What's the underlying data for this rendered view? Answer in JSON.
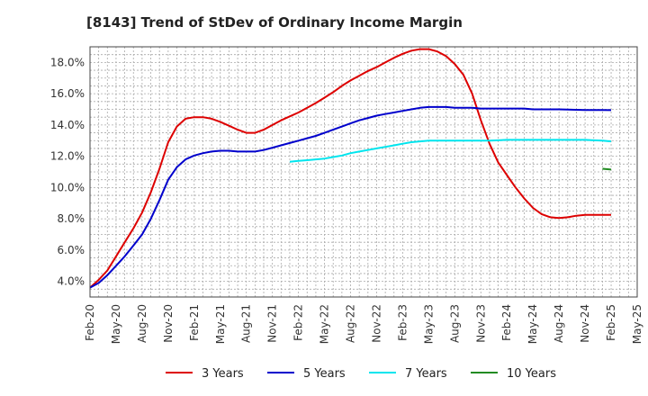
{
  "chart_data": {
    "type": "line",
    "title": "[8143]  Trend of StDev of Ordinary Income Margin",
    "xlabel": "",
    "ylabel": "",
    "x_ticks": [
      "Feb-20",
      "May-20",
      "Aug-20",
      "Nov-20",
      "Feb-21",
      "May-21",
      "Aug-21",
      "Nov-21",
      "Feb-22",
      "May-22",
      "Aug-22",
      "Nov-22",
      "Feb-23",
      "May-23",
      "Aug-23",
      "Nov-23",
      "Feb-24",
      "May-24",
      "Aug-24",
      "Nov-24",
      "Feb-25",
      "May-25"
    ],
    "y_ticks": [
      "4.0%",
      "6.0%",
      "8.0%",
      "10.0%",
      "12.0%",
      "14.0%",
      "16.0%",
      "18.0%"
    ],
    "ylim": [
      3.0,
      19.0
    ],
    "grid": true,
    "legend_position": "bottom",
    "series": [
      {
        "name": "3 Years",
        "color": "#dd0000",
        "points": [
          [
            "Feb-20",
            3.6
          ],
          [
            "Mar-20",
            4.1
          ],
          [
            "Apr-20",
            4.7
          ],
          [
            "May-20",
            5.6
          ],
          [
            "Jun-20",
            6.5
          ],
          [
            "Jul-20",
            7.4
          ],
          [
            "Aug-20",
            8.4
          ],
          [
            "Sep-20",
            9.7
          ],
          [
            "Oct-20",
            11.2
          ],
          [
            "Nov-20",
            12.9
          ],
          [
            "Dec-20",
            13.9
          ],
          [
            "Jan-21",
            14.4
          ],
          [
            "Feb-21",
            14.5
          ],
          [
            "Mar-21",
            14.5
          ],
          [
            "Apr-21",
            14.4
          ],
          [
            "May-21",
            14.2
          ],
          [
            "Jun-21",
            13.95
          ],
          [
            "Jul-21",
            13.7
          ],
          [
            "Aug-21",
            13.5
          ],
          [
            "Sep-21",
            13.5
          ],
          [
            "Oct-21",
            13.7
          ],
          [
            "Nov-21",
            14.0
          ],
          [
            "Dec-21",
            14.3
          ],
          [
            "Jan-22",
            14.55
          ],
          [
            "Feb-22",
            14.8
          ],
          [
            "Mar-22",
            15.1
          ],
          [
            "Apr-22",
            15.4
          ],
          [
            "May-22",
            15.75
          ],
          [
            "Jun-22",
            16.1
          ],
          [
            "Jul-22",
            16.5
          ],
          [
            "Aug-22",
            16.85
          ],
          [
            "Sep-22",
            17.15
          ],
          [
            "Oct-22",
            17.45
          ],
          [
            "Nov-22",
            17.7
          ],
          [
            "Dec-22",
            18.0
          ],
          [
            "Jan-23",
            18.3
          ],
          [
            "Feb-23",
            18.55
          ],
          [
            "Mar-23",
            18.75
          ],
          [
            "Apr-23",
            18.85
          ],
          [
            "May-23",
            18.85
          ],
          [
            "Jun-23",
            18.7
          ],
          [
            "Jul-23",
            18.4
          ],
          [
            "Aug-23",
            17.9
          ],
          [
            "Sep-23",
            17.2
          ],
          [
            "Oct-23",
            16.0
          ],
          [
            "Nov-23",
            14.3
          ],
          [
            "Dec-23",
            12.8
          ],
          [
            "Jan-24",
            11.6
          ],
          [
            "Feb-24",
            10.8
          ],
          [
            "Mar-24",
            10.0
          ],
          [
            "Apr-24",
            9.3
          ],
          [
            "May-24",
            8.7
          ],
          [
            "Jun-24",
            8.3
          ],
          [
            "Jul-24",
            8.1
          ],
          [
            "Aug-24",
            8.05
          ],
          [
            "Sep-24",
            8.1
          ],
          [
            "Oct-24",
            8.2
          ],
          [
            "Nov-24",
            8.25
          ],
          [
            "Dec-24",
            8.25
          ],
          [
            "Jan-25",
            8.25
          ],
          [
            "Feb-25",
            8.25
          ]
        ]
      },
      {
        "name": "5 Years",
        "color": "#0000cc",
        "points": [
          [
            "Feb-20",
            3.6
          ],
          [
            "Mar-20",
            3.9
          ],
          [
            "Apr-20",
            4.4
          ],
          [
            "May-20",
            5.0
          ],
          [
            "Jun-20",
            5.6
          ],
          [
            "Jul-20",
            6.3
          ],
          [
            "Aug-20",
            7.0
          ],
          [
            "Sep-20",
            8.0
          ],
          [
            "Oct-20",
            9.2
          ],
          [
            "Nov-20",
            10.5
          ],
          [
            "Dec-20",
            11.3
          ],
          [
            "Jan-21",
            11.8
          ],
          [
            "Feb-21",
            12.05
          ],
          [
            "Mar-21",
            12.2
          ],
          [
            "Apr-21",
            12.3
          ],
          [
            "May-21",
            12.35
          ],
          [
            "Jun-21",
            12.35
          ],
          [
            "Jul-21",
            12.3
          ],
          [
            "Aug-21",
            12.3
          ],
          [
            "Sep-21",
            12.3
          ],
          [
            "Oct-21",
            12.4
          ],
          [
            "Nov-21",
            12.55
          ],
          [
            "Dec-21",
            12.7
          ],
          [
            "Jan-22",
            12.85
          ],
          [
            "Feb-22",
            13.0
          ],
          [
            "Mar-22",
            13.15
          ],
          [
            "Apr-22",
            13.3
          ],
          [
            "May-22",
            13.5
          ],
          [
            "Jun-22",
            13.7
          ],
          [
            "Jul-22",
            13.9
          ],
          [
            "Aug-22",
            14.1
          ],
          [
            "Sep-22",
            14.3
          ],
          [
            "Oct-22",
            14.45
          ],
          [
            "Nov-22",
            14.6
          ],
          [
            "Dec-22",
            14.7
          ],
          [
            "Jan-23",
            14.8
          ],
          [
            "Feb-23",
            14.9
          ],
          [
            "Mar-23",
            15.0
          ],
          [
            "Apr-23",
            15.1
          ],
          [
            "May-23",
            15.15
          ],
          [
            "Jun-23",
            15.15
          ],
          [
            "Jul-23",
            15.15
          ],
          [
            "Aug-23",
            15.1
          ],
          [
            "Sep-23",
            15.1
          ],
          [
            "Oct-23",
            15.1
          ],
          [
            "Nov-23",
            15.05
          ],
          [
            "Dec-23",
            15.05
          ],
          [
            "Jan-24",
            15.05
          ],
          [
            "Feb-24",
            15.05
          ],
          [
            "Mar-24",
            15.05
          ],
          [
            "Apr-24",
            15.05
          ],
          [
            "May-24",
            15.0
          ],
          [
            "Jun-24",
            15.0
          ],
          [
            "Jul-24",
            15.0
          ],
          [
            "Aug-24",
            15.0
          ],
          [
            "Sep-24",
            14.98
          ],
          [
            "Oct-24",
            14.97
          ],
          [
            "Nov-24",
            14.96
          ],
          [
            "Dec-24",
            14.96
          ],
          [
            "Jan-25",
            14.96
          ],
          [
            "Feb-25",
            14.95
          ]
        ]
      },
      {
        "name": "7 Years",
        "color": "#00e5ee",
        "points": [
          [
            "Jan-22",
            11.65
          ],
          [
            "Feb-22",
            11.7
          ],
          [
            "Mar-22",
            11.75
          ],
          [
            "Apr-22",
            11.8
          ],
          [
            "May-22",
            11.85
          ],
          [
            "Jun-22",
            11.95
          ],
          [
            "Jul-22",
            12.05
          ],
          [
            "Aug-22",
            12.2
          ],
          [
            "Sep-22",
            12.3
          ],
          [
            "Oct-22",
            12.4
          ],
          [
            "Nov-22",
            12.5
          ],
          [
            "Dec-22",
            12.6
          ],
          [
            "Jan-23",
            12.7
          ],
          [
            "Feb-23",
            12.8
          ],
          [
            "Mar-23",
            12.9
          ],
          [
            "Apr-23",
            12.95
          ],
          [
            "May-23",
            13.0
          ],
          [
            "Jun-23",
            13.0
          ],
          [
            "Jul-23",
            13.0
          ],
          [
            "Aug-23",
            13.0
          ],
          [
            "Sep-23",
            13.0
          ],
          [
            "Oct-23",
            13.0
          ],
          [
            "Nov-23",
            13.0
          ],
          [
            "Dec-23",
            13.0
          ],
          [
            "Jan-24",
            13.02
          ],
          [
            "Feb-24",
            13.05
          ],
          [
            "Mar-24",
            13.05
          ],
          [
            "Apr-24",
            13.05
          ],
          [
            "May-24",
            13.05
          ],
          [
            "Jun-24",
            13.05
          ],
          [
            "Jul-24",
            13.05
          ],
          [
            "Aug-24",
            13.05
          ],
          [
            "Sep-24",
            13.05
          ],
          [
            "Oct-24",
            13.05
          ],
          [
            "Nov-24",
            13.05
          ],
          [
            "Dec-24",
            13.02
          ],
          [
            "Jan-25",
            13.0
          ],
          [
            "Feb-25",
            12.95
          ]
        ]
      },
      {
        "name": "10 Years",
        "color": "#228b22",
        "points": [
          [
            "Jan-25",
            11.2
          ],
          [
            "Feb-25",
            11.15
          ]
        ]
      }
    ]
  }
}
